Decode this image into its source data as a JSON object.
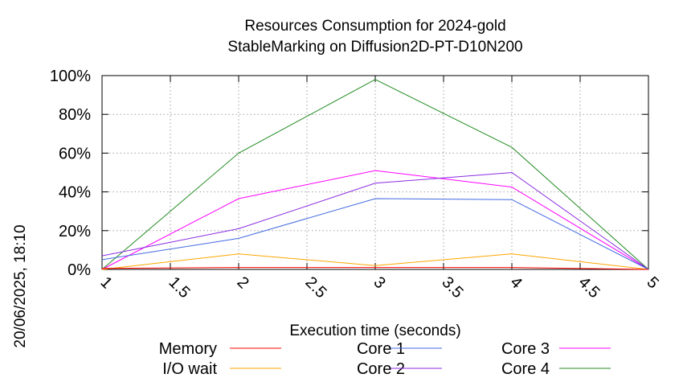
{
  "chart_data": {
    "type": "line",
    "title": "Resources Consumption for 2024-gold",
    "subtitle": "StableMarking on Diffusion2D-PT-D10N200",
    "xlabel": "Execution time (seconds)",
    "ylabel": "",
    "timestamp": "20/06/2025, 18:10",
    "xlim": [
      1,
      5
    ],
    "ylim": [
      0,
      100
    ],
    "x_ticks": [
      "1",
      "1.5",
      "2",
      "2.5",
      "3",
      "3.5",
      "4",
      "4.5",
      "5"
    ],
    "x_tick_values": [
      1,
      1.5,
      2,
      2.5,
      3,
      3.5,
      4,
      4.5,
      5
    ],
    "y_ticks": [
      "0%",
      "20%",
      "40%",
      "60%",
      "80%",
      "100%"
    ],
    "y_tick_values": [
      0,
      20,
      40,
      60,
      80,
      100
    ],
    "grid": true,
    "legend_position": "bottom",
    "x": [
      1,
      2,
      3,
      4,
      5
    ],
    "series": [
      {
        "name": "Memory",
        "color": "#ff0000",
        "values": [
          0.5,
          1,
          1,
          1,
          0
        ]
      },
      {
        "name": "I/O wait",
        "color": "#ffa500",
        "values": [
          0,
          8,
          2,
          8,
          0
        ]
      },
      {
        "name": "Core 1",
        "color": "#4169e1",
        "values": [
          5,
          16,
          36.5,
          36,
          0
        ]
      },
      {
        "name": "Core 2",
        "color": "#8a2be2",
        "values": [
          7,
          21,
          44.5,
          50,
          0
        ]
      },
      {
        "name": "Core 3",
        "color": "#ff00ff",
        "values": [
          0,
          36.5,
          51,
          42.5,
          0
        ]
      },
      {
        "name": "Core 4",
        "color": "#228b22",
        "values": [
          0,
          60,
          98,
          63,
          0
        ]
      }
    ]
  }
}
